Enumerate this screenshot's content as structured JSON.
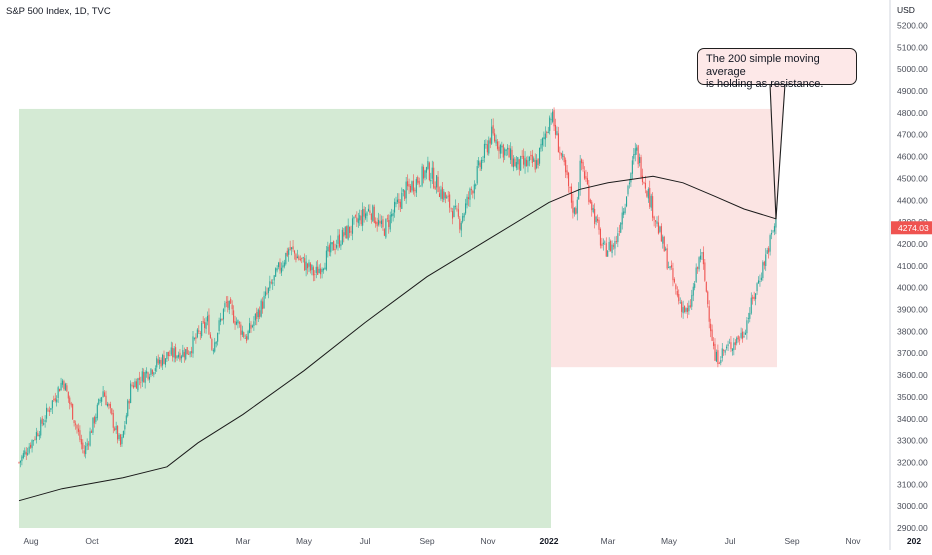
{
  "header": {
    "title": "S&P 500 Index, 1D, TVC"
  },
  "annotation": {
    "text_line1": "The 200 simple moving average",
    "text_line2": "is holding as resistance."
  },
  "colors": {
    "up": "#26a69a",
    "down": "#ef5350",
    "sma": "#1a1a1a",
    "green_zone": "#d4ead4",
    "red_zone": "#fbe4e3",
    "price_tag": "#ef5350"
  },
  "chart_data": {
    "type": "candlestick",
    "symbol": "S&P 500 Index",
    "interval": "1D",
    "source": "TVC",
    "currency_label": "USD",
    "ylim": [
      2900,
      5300
    ],
    "y_ticks": [
      "2900.00",
      "3000.00",
      "3100.00",
      "3200.00",
      "3300.00",
      "3400.00",
      "3500.00",
      "3600.00",
      "3700.00",
      "3800.00",
      "3900.00",
      "4000.00",
      "4100.00",
      "4200.00",
      "4300.00",
      "4400.00",
      "4500.00",
      "4600.00",
      "4700.00",
      "4800.00",
      "4900.00",
      "5000.00",
      "5100.00",
      "5200.00"
    ],
    "x_range": [
      "2020-07-20",
      "2022-12-31"
    ],
    "x_ticks": [
      {
        "label": "Aug",
        "date": "2020-08-01",
        "bold": false
      },
      {
        "label": "Oct",
        "date": "2020-10-01",
        "bold": false
      },
      {
        "label": "2021",
        "date": "2021-01-01",
        "bold": true
      },
      {
        "label": "Mar",
        "date": "2021-03-01",
        "bold": false
      },
      {
        "label": "May",
        "date": "2021-05-01",
        "bold": false
      },
      {
        "label": "Jul",
        "date": "2021-07-01",
        "bold": false
      },
      {
        "label": "Sep",
        "date": "2021-09-01",
        "bold": false
      },
      {
        "label": "Nov",
        "date": "2021-11-01",
        "bold": false
      },
      {
        "label": "2022",
        "date": "2022-01-01",
        "bold": true
      },
      {
        "label": "Mar",
        "date": "2022-03-01",
        "bold": false
      },
      {
        "label": "May",
        "date": "2022-05-01",
        "bold": false
      },
      {
        "label": "Jul",
        "date": "2022-07-01",
        "bold": false
      },
      {
        "label": "Sep",
        "date": "2022-09-01",
        "bold": false
      },
      {
        "label": "Nov",
        "date": "2022-11-01",
        "bold": false
      },
      {
        "label": "202",
        "date": "2023-01-01",
        "bold": true
      }
    ],
    "last_price": "4274.03",
    "zones": [
      {
        "name": "uptrend",
        "color": "green",
        "x_start": "2020-07-20",
        "x_end": "2022-01-03",
        "y_bottom": 2880,
        "y_top": 4818
      },
      {
        "name": "downtrend",
        "color": "red",
        "x_start": "2022-01-03",
        "x_end": "2022-08-17",
        "y_bottom": 3636,
        "y_top": 4818
      }
    ],
    "price_path": [
      {
        "date": "2020-07-20",
        "value": 3200
      },
      {
        "date": "2020-08-10",
        "value": 3360
      },
      {
        "date": "2020-09-02",
        "value": 3580
      },
      {
        "date": "2020-09-23",
        "value": 3240
      },
      {
        "date": "2020-10-12",
        "value": 3530
      },
      {
        "date": "2020-10-30",
        "value": 3270
      },
      {
        "date": "2020-11-09",
        "value": 3550
      },
      {
        "date": "2020-12-15",
        "value": 3690
      },
      {
        "date": "2021-01-05",
        "value": 3710
      },
      {
        "date": "2021-01-25",
        "value": 3850
      },
      {
        "date": "2021-01-29",
        "value": 3720
      },
      {
        "date": "2021-02-12",
        "value": 3930
      },
      {
        "date": "2021-03-04",
        "value": 3770
      },
      {
        "date": "2021-04-16",
        "value": 4180
      },
      {
        "date": "2021-05-12",
        "value": 4060
      },
      {
        "date": "2021-06-01",
        "value": 4200
      },
      {
        "date": "2021-07-06",
        "value": 4360
      },
      {
        "date": "2021-07-19",
        "value": 4260
      },
      {
        "date": "2021-08-10",
        "value": 4440
      },
      {
        "date": "2021-09-02",
        "value": 4540
      },
      {
        "date": "2021-10-04",
        "value": 4300
      },
      {
        "date": "2021-11-04",
        "value": 4700
      },
      {
        "date": "2021-11-30",
        "value": 4560
      },
      {
        "date": "2021-12-20",
        "value": 4570
      },
      {
        "date": "2022-01-03",
        "value": 4800
      },
      {
        "date": "2022-01-27",
        "value": 4330
      },
      {
        "date": "2022-02-02",
        "value": 4580
      },
      {
        "date": "2022-02-24",
        "value": 4170
      },
      {
        "date": "2022-03-08",
        "value": 4200
      },
      {
        "date": "2022-03-29",
        "value": 4630
      },
      {
        "date": "2022-05-10",
        "value": 3950
      },
      {
        "date": "2022-05-20",
        "value": 3870
      },
      {
        "date": "2022-06-02",
        "value": 4170
      },
      {
        "date": "2022-06-16",
        "value": 3670
      },
      {
        "date": "2022-07-14",
        "value": 3790
      },
      {
        "date": "2022-08-16",
        "value": 4305
      }
    ],
    "sma_200": [
      {
        "date": "2020-07-20",
        "value": 3025
      },
      {
        "date": "2020-09-01",
        "value": 3080
      },
      {
        "date": "2020-11-01",
        "value": 3130
      },
      {
        "date": "2020-12-15",
        "value": 3180
      },
      {
        "date": "2021-01-15",
        "value": 3290
      },
      {
        "date": "2021-03-01",
        "value": 3420
      },
      {
        "date": "2021-05-01",
        "value": 3620
      },
      {
        "date": "2021-07-01",
        "value": 3840
      },
      {
        "date": "2021-09-01",
        "value": 4050
      },
      {
        "date": "2021-11-01",
        "value": 4220
      },
      {
        "date": "2022-01-01",
        "value": 4390
      },
      {
        "date": "2022-02-01",
        "value": 4450
      },
      {
        "date": "2022-03-01",
        "value": 4480
      },
      {
        "date": "2022-04-15",
        "value": 4510
      },
      {
        "date": "2022-05-15",
        "value": 4480
      },
      {
        "date": "2022-06-15",
        "value": 4420
      },
      {
        "date": "2022-07-15",
        "value": 4360
      },
      {
        "date": "2022-08-16",
        "value": 4315
      }
    ]
  }
}
